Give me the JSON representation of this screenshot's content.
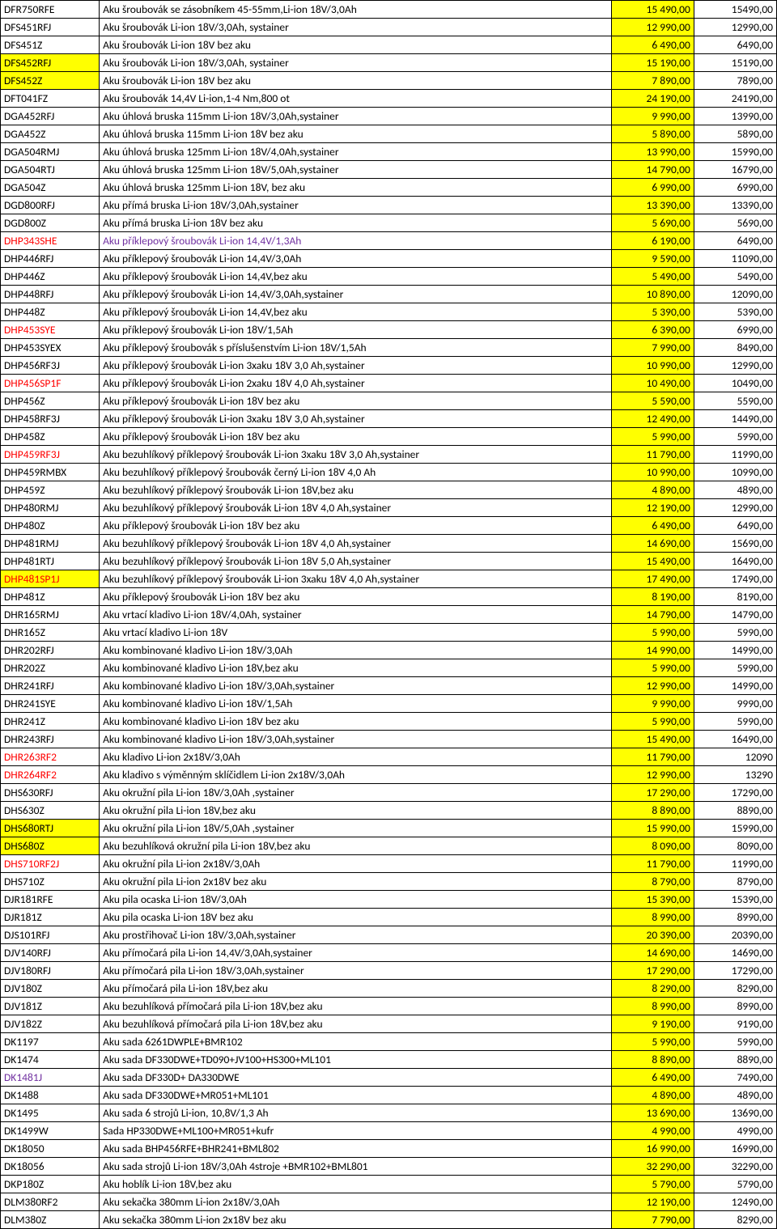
{
  "rows": [
    {
      "code": "DFR750RFE",
      "desc": "Aku šroubovák se zásobníkem 45-55mm,Li-ion 18V/3,0Ah",
      "p1": "15 490,00",
      "p2": "15490,00"
    },
    {
      "code": "DFS451RFJ",
      "desc": "Aku šroubovák Li-ion 18V/3,0Ah, systainer",
      "p1": "12 990,00",
      "p2": "12990,00"
    },
    {
      "code": "DFS451Z",
      "desc": "Aku šroubovák Li-ion 18V bez aku",
      "p1": "6 490,00",
      "p2": "6490,00"
    },
    {
      "code": "DFS452RFJ",
      "desc": "Aku šroubovák Li-ion 18V/3,0Ah, systainer",
      "p1": "15 190,00",
      "p2": "15190,00",
      "codeBg": "y"
    },
    {
      "code": "DFS452Z",
      "desc": "Aku šroubovák Li-ion 18V bez aku",
      "p1": "7 890,00",
      "p2": "7890,00",
      "codeBg": "y"
    },
    {
      "code": "DFT041FZ",
      "desc": "Aku šroubovák 14,4V Li-ion,1-4 Nm,800 ot",
      "p1": "24 190,00",
      "p2": "24190,00"
    },
    {
      "code": "DGA452RFJ",
      "desc": "Aku úhlová bruska 115mm Li-ion 18V/3,0Ah,systainer",
      "p1": "9 990,00",
      "p2": "13990,00"
    },
    {
      "code": "DGA452Z",
      "desc": "Aku úhlová bruska 115mm Li-ion 18V bez aku",
      "p1": "5 890,00",
      "p2": "5890,00"
    },
    {
      "code": "DGA504RMJ",
      "desc": "Aku úhlová bruska 125mm Li-ion 18V/4,0Ah,systainer",
      "p1": "13 990,00",
      "p2": "15990,00"
    },
    {
      "code": "DGA504RTJ",
      "desc": "Aku úhlová bruska 125mm Li-ion 18V/5,0Ah,systainer",
      "p1": "14 790,00",
      "p2": "16790,00"
    },
    {
      "code": "DGA504Z",
      "desc": "Aku úhlová bruska 125mm Li-ion 18V, bez aku",
      "p1": "6 990,00",
      "p2": "6990,00"
    },
    {
      "code": "DGD800RFJ",
      "desc": "Aku přímá bruska Li-ion 18V/3,0Ah,systainer",
      "p1": "13 390,00",
      "p2": "13390,00"
    },
    {
      "code": "DGD800Z",
      "desc": "Aku přímá bruska Li-ion 18V bez aku",
      "p1": "5 690,00",
      "p2": "5690,00"
    },
    {
      "code": "DHP343SHE",
      "desc": "Aku příklepový šroubovák Li-ion 14,4V/1,3Ah",
      "p1": "6 190,00",
      "p2": "6490,00",
      "codeColor": "r",
      "descColor": "p"
    },
    {
      "code": "DHP446RFJ",
      "desc": "Aku příklepový šroubovák Li-ion 14,4V/3,0Ah",
      "p1": "9 590,00",
      "p2": "11090,00"
    },
    {
      "code": "DHP446Z",
      "desc": "Aku příklepový šroubovák Li-ion 14,4V,bez aku",
      "p1": "5 490,00",
      "p2": "5490,00"
    },
    {
      "code": "DHP448RFJ",
      "desc": "Aku příklepový šroubovák Li-ion 14,4V/3,0Ah,systainer",
      "p1": "10 890,00",
      "p2": "12090,00"
    },
    {
      "code": "DHP448Z",
      "desc": "Aku příklepový šroubovák Li-ion 14,4V,bez aku",
      "p1": "5 390,00",
      "p2": "5390,00"
    },
    {
      "code": "DHP453SYE",
      "desc": "Aku příklepový šroubovák Li-ion 18V/1,5Ah",
      "p1": "6 390,00",
      "p2": "6990,00",
      "codeColor": "r"
    },
    {
      "code": "DHP453SYEX",
      "desc": "Aku příklepový šroubovák s příslušenstvím Li-ion 18V/1,5Ah",
      "p1": "7 990,00",
      "p2": "8490,00"
    },
    {
      "code": "DHP456RF3J",
      "desc": "Aku příklepový šroubovák Li-ion 3xaku 18V 3,0 Ah,systainer",
      "p1": "10 990,00",
      "p2": "12990,00"
    },
    {
      "code": "DHP456SP1F",
      "desc": "Aku příklepový šroubovák Li-ion 2xaku 18V 4,0 Ah,systainer",
      "p1": "10 490,00",
      "p2": "10490,00",
      "codeColor": "r"
    },
    {
      "code": "DHP456Z",
      "desc": "Aku příklepový šroubovák Li-ion 18V bez aku",
      "p1": "5 590,00",
      "p2": "5590,00"
    },
    {
      "code": "DHP458RF3J",
      "desc": "Aku příklepový šroubovák Li-ion 3xaku 18V 3,0 Ah,systainer",
      "p1": "12 490,00",
      "p2": "14490,00"
    },
    {
      "code": "DHP458Z",
      "desc": "Aku příklepový šroubovák Li-ion 18V bez aku",
      "p1": "5 990,00",
      "p2": "5990,00"
    },
    {
      "code": "DHP459RF3J",
      "desc": "Aku bezuhlíkový příklepový šroubovák Li-ion 3xaku 18V 3,0 Ah,systainer",
      "p1": "11 790,00",
      "p2": "11990,00",
      "codeColor": "r"
    },
    {
      "code": "DHP459RMBX",
      "desc": "Aku bezuhlíkový příklepový šroubovák černý Li-ion 18V 4,0 Ah",
      "p1": "10 990,00",
      "p2": "10990,00"
    },
    {
      "code": "DHP459Z",
      "desc": "Aku bezuhlíkový příklepový šroubovák Li-ion 18V,bez aku",
      "p1": "4 890,00",
      "p2": "4890,00"
    },
    {
      "code": "DHP480RMJ",
      "desc": "Aku bezuhlíkový příklepový šroubovák Li-ion 18V 4,0 Ah,systainer",
      "p1": "12 190,00",
      "p2": "12990,00"
    },
    {
      "code": "DHP480Z",
      "desc": "Aku příklepový šroubovák Li-ion 18V bez aku",
      "p1": "6 490,00",
      "p2": "6490,00"
    },
    {
      "code": "DHP481RMJ",
      "desc": "Aku bezuhlíkový příklepový šroubovák Li-ion 18V 4,0 Ah,systainer",
      "p1": "14 690,00",
      "p2": "15690,00"
    },
    {
      "code": "DHP481RTJ",
      "desc": "Aku bezuhlíkový příklepový šroubovák Li-ion 18V 5,0 Ah,systainer",
      "p1": "15 490,00",
      "p2": "16490,00"
    },
    {
      "code": "DHP481SP1J",
      "desc": "Aku bezuhlíkový příklepový šroubovák Li-ion 3xaku 18V 4,0 Ah,systainer",
      "p1": "17 490,00",
      "p2": "17490,00",
      "codeBg": "y",
      "codeColor": "r"
    },
    {
      "code": "DHP481Z",
      "desc": "Aku příklepový šroubovák Li-ion 18V bez aku",
      "p1": "8 190,00",
      "p2": "8190,00"
    },
    {
      "code": "DHR165RMJ",
      "desc": "Aku vrtací kladivo Li-ion 18V/4,0Ah, systainer",
      "p1": "14 790,00",
      "p2": "14790,00"
    },
    {
      "code": "DHR165Z",
      "desc": "Aku vrtací kladivo Li-ion 18V",
      "p1": "5 990,00",
      "p2": "5990,00"
    },
    {
      "code": "DHR202RFJ",
      "desc": "Aku kombinované kladivo Li-ion 18V/3,0Ah",
      "p1": "14 990,00",
      "p2": "14990,00"
    },
    {
      "code": "DHR202Z",
      "desc": "Aku kombinované kladivo Li-ion 18V,bez aku",
      "p1": "5 990,00",
      "p2": "5990,00"
    },
    {
      "code": "DHR241RFJ",
      "desc": "Aku kombinované kladivo Li-ion 18V/3,0Ah,systainer",
      "p1": "12 990,00",
      "p2": "14990,00"
    },
    {
      "code": "DHR241SYE",
      "desc": "Aku kombinované kladivo Li-ion 18V/1,5Ah",
      "p1": "9 990,00",
      "p2": "9990,00"
    },
    {
      "code": "DHR241Z",
      "desc": "Aku kombinované kladivo Li-ion 18V bez aku",
      "p1": "5 990,00",
      "p2": "5990,00"
    },
    {
      "code": "DHR243RFJ",
      "desc": "Aku kombinované kladivo Li-ion 18V/3,0Ah,systainer",
      "p1": "15 490,00",
      "p2": "16490,00"
    },
    {
      "code": "DHR263RF2",
      "desc": "Aku kladivo Li-ion 2x18V/3,0Ah",
      "p1": "11 790,00",
      "p2": "12090",
      "codeColor": "r"
    },
    {
      "code": "DHR264RF2",
      "desc": "Aku kladivo s výměnným sklíčidlem Li-ion 2x18V/3,0Ah",
      "p1": "12 990,00",
      "p2": "13290",
      "codeColor": "r"
    },
    {
      "code": "DHS630RFJ",
      "desc": "Aku okružní pila Li-ion 18V/3,0Ah ,systainer",
      "p1": "17 290,00",
      "p2": "17290,00"
    },
    {
      "code": "DHS630Z",
      "desc": "Aku okružní pila Li-ion 18V,bez aku",
      "p1": "8 890,00",
      "p2": "8890,00"
    },
    {
      "code": "DHS680RTJ",
      "desc": "Aku okružní pila Li-ion 18V/5,0Ah ,systainer",
      "p1": "15 990,00",
      "p2": "15990,00",
      "codeBg": "y"
    },
    {
      "code": "DHS680Z",
      "desc": "Aku bezuhlíková okružní pila Li-ion 18V,bez aku",
      "p1": "8 090,00",
      "p2": "8090,00",
      "codeBg": "y"
    },
    {
      "code": "DHS710RF2J",
      "desc": "Aku okružní pila Li-ion 2x18V/3,0Ah",
      "p1": "11 790,00",
      "p2": "11990,00",
      "codeColor": "r"
    },
    {
      "code": "DHS710Z",
      "desc": "Aku okružní pila Li-ion 2x18V bez aku",
      "p1": "8 790,00",
      "p2": "8790,00"
    },
    {
      "code": "DJR181RFE",
      "desc": "Aku pila ocaska Li-ion 18V/3,0Ah",
      "p1": "15 390,00",
      "p2": "15390,00"
    },
    {
      "code": "DJR181Z",
      "desc": "Aku pila ocaska Li-ion 18V bez aku",
      "p1": "8 990,00",
      "p2": "8990,00"
    },
    {
      "code": "DJS101RFJ",
      "desc": "Aku prostřihovač Li-ion 18V/3,0Ah,systainer",
      "p1": "20 390,00",
      "p2": "20390,00"
    },
    {
      "code": "DJV140RFJ",
      "desc": "Aku přímočará pila Li-ion 14,4V/3,0Ah,systainer",
      "p1": "14 690,00",
      "p2": "14690,00"
    },
    {
      "code": "DJV180RFJ",
      "desc": "Aku přímočará pila Li-ion 18V/3,0Ah,systainer",
      "p1": "17 290,00",
      "p2": "17290,00"
    },
    {
      "code": "DJV180Z",
      "desc": "Aku přímočará pila Li-ion 18V,bez aku",
      "p1": "8 290,00",
      "p2": "8290,00"
    },
    {
      "code": "DJV181Z",
      "desc": "Aku bezuhlíková přímočará pila Li-ion 18V,bez aku",
      "p1": "8 990,00",
      "p2": "8990,00"
    },
    {
      "code": "DJV182Z",
      "desc": "Aku bezuhlíková přímočará pila Li-ion 18V,bez aku",
      "p1": "9 190,00",
      "p2": "9190,00"
    },
    {
      "code": "DK1197",
      "desc": "Aku sada 6261DWPLE+BMR102",
      "p1": "5 990,00",
      "p2": "5990,00"
    },
    {
      "code": "DK1474",
      "desc": "Aku sada DF330DWE+TD090+JV100+HS300+ML101",
      "p1": "8 890,00",
      "p2": "8890,00"
    },
    {
      "code": "DK1481J",
      "desc": "Aku sada DF330D+ DA330DWE",
      "p1": "6 490,00",
      "p2": "7490,00",
      "codeColor": "p"
    },
    {
      "code": "DK1488",
      "desc": "Aku sada DF330DWE+MR051+ML101",
      "p1": "4 890,00",
      "p2": "4890,00"
    },
    {
      "code": "DK1495",
      "desc": "Aku sada 6 strojů Li-ion, 10,8V/1,3 Ah",
      "p1": "13 690,00",
      "p2": "13690,00"
    },
    {
      "code": "DK1499W",
      "desc": "Sada HP330DWE+ML100+MR051+kufr",
      "p1": "4 990,00",
      "p2": "4990,00"
    },
    {
      "code": "DK18050",
      "desc": "Aku sada BHP456RFE+BHR241+BML802",
      "p1": "16 990,00",
      "p2": "16990,00"
    },
    {
      "code": "DK18056",
      "desc": "Aku sada  strojů Li-ion 18V/3,0Ah 4stroje +BMR102+BML801",
      "p1": "32 290,00",
      "p2": "32290,00"
    },
    {
      "code": "DKP180Z",
      "desc": "Aku hoblík Li-ion 18V,bez aku",
      "p1": "5 790,00",
      "p2": "5790,00"
    },
    {
      "code": "DLM380RF2",
      "desc": "Aku sekačka 380mm Li-ion 2x18V/3,0Ah",
      "p1": "12 190,00",
      "p2": "12490,00"
    },
    {
      "code": "DLM380Z",
      "desc": "Aku sekačka 380mm Li-ion 2x18V bez aku",
      "p1": "7 790,00",
      "p2": "8290,00"
    }
  ]
}
